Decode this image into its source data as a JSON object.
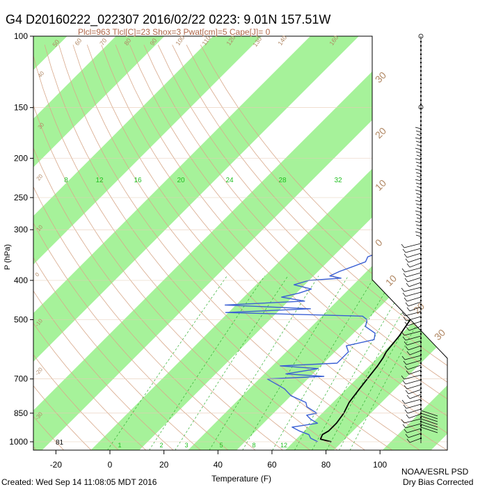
{
  "title": "G4 D20160222_022307 2016/02/22 0223:  9.01N 157.51W",
  "subtitle": "Plcl=963 Tlcl[C]=23 Shox=3 Pwat[cm]=5 Cape[J]= 0",
  "footer_left": "Created: Wed Sep 14 11:08:05 MDT 2016",
  "footer_right_1": "NOAA/ESRL PSD",
  "footer_right_2": "Dry Bias Corrected",
  "colors": {
    "stripe": "#a6f29a",
    "temperature": "#000000",
    "dewpoint": "#3a5fd4",
    "adiabat": "#d8a88a",
    "mixing": "#2fae2f",
    "label_brown": "#b08763"
  },
  "chart_data": {
    "type": "line",
    "xlabel": "Temperature (F)",
    "ylabel": "P (hPa)",
    "xlim_F": [
      -30,
      110
    ],
    "ylim_hPa": [
      1000,
      100
    ],
    "log_y": true,
    "skew": true,
    "x_ticks_F": [
      "-20",
      "0",
      "20",
      "40",
      "60",
      "80",
      "100"
    ],
    "y_ticks_hPa": [
      "100",
      "150",
      "200",
      "250",
      "300",
      "400",
      "500",
      "700",
      "850",
      "1000"
    ],
    "surface_value": "81",
    "mixing_ratio_labels": [
      "8",
      "12",
      "16",
      "20",
      "24",
      "28",
      "32"
    ],
    "mixing_ratio_bottom_labels": [
      "1",
      "2",
      "3",
      "5",
      "8",
      "12"
    ],
    "isotherm_labels_C": [
      "30",
      "20",
      "10",
      "0",
      "10",
      "20",
      "30"
    ],
    "adiabat_labels": [
      "50",
      "60",
      "70",
      "80",
      "90",
      "100",
      "110",
      "120",
      "130",
      "140",
      "160"
    ],
    "left_edge_labels": [
      "40",
      "30",
      "20",
      "10",
      "0",
      "-10",
      "-20",
      "-30"
    ],
    "series": [
      {
        "key": "temperature",
        "points": [
          [
            1000,
            82
          ],
          [
            985,
            77
          ],
          [
            960,
            76
          ],
          [
            940,
            77
          ],
          [
            900,
            77
          ],
          [
            850,
            76
          ],
          [
            800,
            74
          ],
          [
            750,
            73
          ],
          [
            700,
            72
          ],
          [
            650,
            71
          ],
          [
            620,
            70
          ],
          [
            600,
            69
          ],
          [
            550,
            68
          ],
          [
            500,
            66
          ],
          [
            470,
            65
          ],
          [
            450,
            64
          ],
          [
            420,
            62
          ],
          [
            400,
            60
          ],
          [
            370,
            57
          ],
          [
            350,
            55
          ],
          [
            320,
            53
          ],
          [
            300,
            51
          ],
          [
            280,
            48
          ],
          [
            250,
            44
          ],
          [
            220,
            40
          ],
          [
            200,
            37
          ],
          [
            180,
            35
          ],
          [
            170,
            34
          ]
        ]
      },
      {
        "key": "dewpoint",
        "points": [
          [
            1000,
            77
          ],
          [
            980,
            73
          ],
          [
            960,
            71
          ],
          [
            940,
            66
          ],
          [
            920,
            62
          ],
          [
            900,
            70
          ],
          [
            880,
            66
          ],
          [
            860,
            63
          ],
          [
            850,
            66
          ],
          [
            820,
            60
          ],
          [
            800,
            58
          ],
          [
            770,
            50
          ],
          [
            740,
            45
          ],
          [
            700,
            35
          ],
          [
            690,
            55
          ],
          [
            680,
            40
          ],
          [
            660,
            50
          ],
          [
            650,
            35
          ],
          [
            640,
            55
          ],
          [
            600,
            55
          ],
          [
            580,
            52
          ],
          [
            560,
            60
          ],
          [
            540,
            58
          ],
          [
            520,
            52
          ],
          [
            500,
            50
          ],
          [
            490,
            47
          ],
          [
            480,
            -5
          ],
          [
            470,
            25
          ],
          [
            460,
            -8
          ],
          [
            450,
            20
          ],
          [
            440,
            10
          ],
          [
            430,
            15
          ],
          [
            420,
            18
          ],
          [
            410,
            10
          ],
          [
            400,
            14
          ],
          [
            395,
            25
          ],
          [
            390,
            20
          ],
          [
            380,
            22
          ],
          [
            370,
            25
          ],
          [
            360,
            28
          ],
          [
            350,
            27
          ],
          [
            340,
            30
          ],
          [
            320,
            28
          ],
          [
            300,
            30
          ],
          [
            290,
            25
          ],
          [
            280,
            25
          ],
          [
            260,
            20
          ],
          [
            250,
            15
          ],
          [
            240,
            15
          ],
          [
            230,
            17
          ],
          [
            220,
            14
          ],
          [
            210,
            10
          ],
          [
            200,
            8
          ],
          [
            190,
            5
          ]
        ]
      }
    ]
  }
}
